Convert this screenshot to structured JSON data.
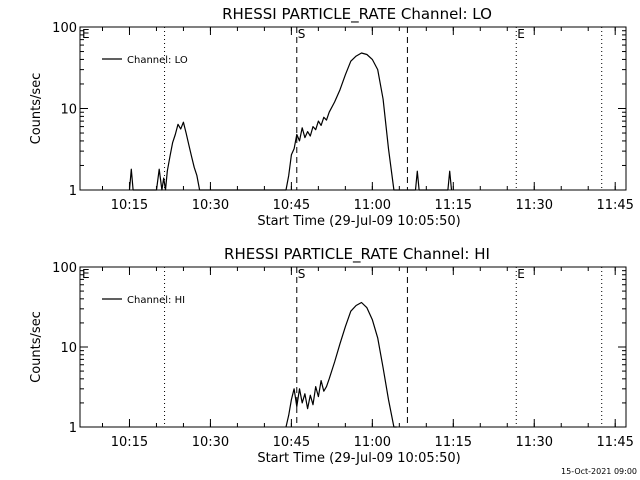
{
  "footer_timestamp": "15-Oct-2021 09:00",
  "chart_data": [
    {
      "type": "line",
      "title": "RHESSI PARTICLE_RATE Channel: LO",
      "xlabel": "Start Time (29-Jul-09 10:05:50)",
      "ylabel": "Counts/sec",
      "y_scale": "log",
      "ylim": [
        1,
        100
      ],
      "xlim": [
        "10:05:50",
        "11:47:00"
      ],
      "x_ticks": [
        "10:15",
        "10:30",
        "10:45",
        "11:00",
        "11:15",
        "11:30",
        "11:45"
      ],
      "y_ticks": [
        "1",
        "10",
        "100"
      ],
      "legend": {
        "position": "top-left",
        "entries": [
          "Channel: LO"
        ]
      },
      "markers": [
        {
          "label": "E",
          "time": "10:05:50",
          "style": "dotted"
        },
        {
          "label": "",
          "time": "10:21:30",
          "style": "dotted"
        },
        {
          "label": "S",
          "time": "10:46:00",
          "style": "dashed"
        },
        {
          "label": "",
          "time": "11:06:30",
          "style": "dashed"
        },
        {
          "label": "E",
          "time": "11:26:40",
          "style": "dotted"
        },
        {
          "label": "",
          "time": "11:42:30",
          "style": "dotted"
        }
      ],
      "series": [
        {
          "name": "Channel: LO",
          "x": [
            "10:15:00",
            "10:15:20",
            "10:15:40",
            "10:20:00",
            "10:20:30",
            "10:21:00",
            "10:21:20",
            "10:21:40",
            "10:22:00",
            "10:22:30",
            "10:23:00",
            "10:23:30",
            "10:24:00",
            "10:24:30",
            "10:25:00",
            "10:25:30",
            "10:26:00",
            "10:26:30",
            "10:27:00",
            "10:27:30",
            "10:28:00",
            "10:29:00",
            "10:44:00",
            "10:44:30",
            "10:45:00",
            "10:45:30",
            "10:46:00",
            "10:46:30",
            "10:47:00",
            "10:47:30",
            "10:48:00",
            "10:48:30",
            "10:49:00",
            "10:49:30",
            "10:50:00",
            "10:50:30",
            "10:51:00",
            "10:51:30",
            "10:52:00",
            "10:53:00",
            "10:54:00",
            "10:55:00",
            "10:56:00",
            "10:57:00",
            "10:58:00",
            "10:59:00",
            "11:00:00",
            "11:01:00",
            "11:02:00",
            "11:03:00",
            "11:04:00",
            "11:04:30",
            "11:08:00",
            "11:08:20",
            "11:08:40",
            "11:14:00",
            "11:14:20",
            "11:14:40"
          ],
          "y": [
            1.0,
            1.8,
            1.0,
            1.0,
            1.8,
            1.0,
            1.4,
            1.0,
            1.7,
            2.6,
            3.8,
            4.8,
            6.4,
            5.6,
            6.8,
            5.0,
            3.6,
            2.6,
            1.9,
            1.5,
            1.0,
            1.0,
            1.0,
            1.5,
            2.7,
            3.2,
            4.8,
            4.0,
            5.8,
            4.4,
            5.2,
            4.6,
            6.0,
            5.5,
            7.0,
            6.2,
            7.8,
            7.2,
            9.0,
            12,
            17,
            26,
            38,
            44,
            48,
            46,
            40,
            30,
            13,
            3.2,
            1.0,
            1.0,
            1.0,
            1.7,
            1.0,
            1.0,
            1.7,
            1.0
          ]
        }
      ]
    },
    {
      "type": "line",
      "title": "RHESSI PARTICLE_RATE Channel: HI",
      "xlabel": "Start Time (29-Jul-09 10:05:50)",
      "ylabel": "Counts/sec",
      "y_scale": "log",
      "ylim": [
        1,
        100
      ],
      "xlim": [
        "10:05:50",
        "11:47:00"
      ],
      "x_ticks": [
        "10:15",
        "10:30",
        "10:45",
        "11:00",
        "11:15",
        "11:30",
        "11:45"
      ],
      "y_ticks": [
        "1",
        "10",
        "100"
      ],
      "legend": {
        "position": "top-left",
        "entries": [
          "Channel: HI"
        ]
      },
      "markers": [
        {
          "label": "E",
          "time": "10:05:50",
          "style": "dotted"
        },
        {
          "label": "",
          "time": "10:21:30",
          "style": "dotted"
        },
        {
          "label": "S",
          "time": "10:46:00",
          "style": "dashed"
        },
        {
          "label": "",
          "time": "11:06:30",
          "style": "dashed"
        },
        {
          "label": "E",
          "time": "11:26:40",
          "style": "dotted"
        },
        {
          "label": "",
          "time": "11:42:30",
          "style": "dotted"
        }
      ],
      "series": [
        {
          "name": "Channel: HI",
          "x": [
            "10:44:00",
            "10:44:30",
            "10:45:00",
            "10:45:30",
            "10:46:00",
            "10:46:30",
            "10:47:00",
            "10:47:30",
            "10:48:00",
            "10:48:30",
            "10:49:00",
            "10:49:30",
            "10:50:00",
            "10:50:30",
            "10:51:00",
            "10:51:30",
            "10:52:00",
            "10:53:00",
            "10:54:00",
            "10:55:00",
            "10:56:00",
            "10:57:00",
            "10:58:00",
            "10:59:00",
            "11:00:00",
            "11:01:00",
            "11:02:00",
            "11:03:00",
            "11:04:00",
            "11:04:30"
          ],
          "y": [
            1.0,
            1.4,
            2.2,
            3.0,
            1.8,
            3.0,
            2.0,
            2.6,
            1.7,
            2.5,
            1.9,
            3.2,
            2.4,
            3.8,
            2.8,
            3.2,
            4.0,
            6.5,
            11,
            18,
            28,
            33,
            36,
            31,
            22,
            13,
            5.5,
            2.2,
            1.0,
            1.0
          ]
        }
      ]
    }
  ]
}
